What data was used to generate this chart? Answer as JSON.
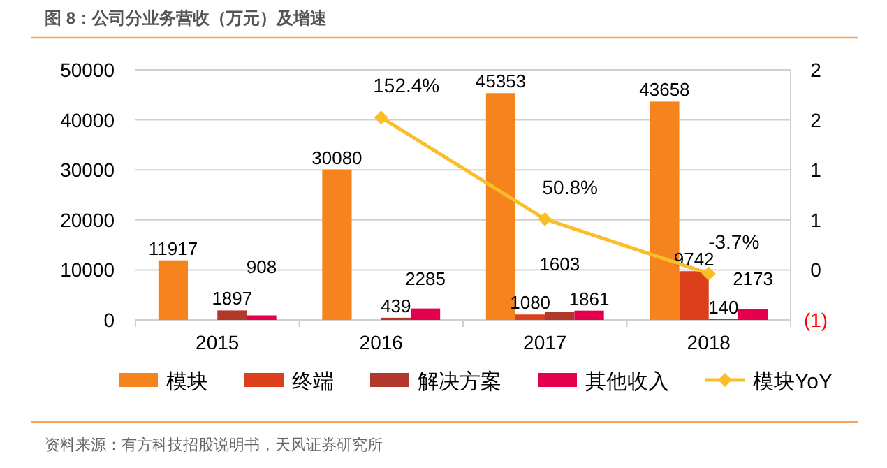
{
  "chart_data": {
    "type": "bar",
    "title": "图 8：公司分业务营收（万元）及增速",
    "categories": [
      "2015",
      "2016",
      "2017",
      "2018"
    ],
    "series": [
      {
        "name": "模块",
        "color": "#f5841f",
        "values": [
          11917,
          30080,
          45353,
          43658
        ],
        "value_labels": [
          "11917",
          "30080",
          "45353",
          "43658"
        ]
      },
      {
        "name": "终端",
        "color": "#dc3f1c",
        "values": [
          null,
          null,
          1080,
          9742
        ],
        "value_labels": [
          null,
          null,
          "1080",
          "9742"
        ]
      },
      {
        "name": "解决方案",
        "color": "#b0392c",
        "values": [
          1897,
          439,
          1603,
          140
        ],
        "value_labels": [
          "1897",
          "439",
          "1603",
          "140"
        ]
      },
      {
        "name": "其他收入",
        "color": "#e5004f",
        "values": [
          908,
          2285,
          1861,
          2173
        ],
        "value_labels": [
          "908",
          "2285",
          "1861",
          "2173"
        ]
      },
      {
        "name": "模块YoY",
        "type": "line",
        "axis": "y2",
        "color": "#f9be28",
        "marker": "diamond",
        "values": [
          null,
          1.524,
          0.508,
          -0.037
        ],
        "value_labels": [
          null,
          "152.4%",
          "50.8%",
          "-3.7%"
        ]
      }
    ],
    "ylim": [
      0,
      50000
    ],
    "yticks": [
      0,
      10000,
      20000,
      30000,
      40000,
      50000
    ],
    "y2lim": [
      -0.5,
      2
    ],
    "y2ticks": [
      {
        "value": -0.5,
        "label": "(1)"
      },
      0,
      {
        "value": 0.5,
        "label": "1"
      },
      1,
      {
        "value": 1.5,
        "label": "2"
      },
      2
    ],
    "grid": "y",
    "legend": "bottom",
    "annotations": [
      "资料来源：有方科技招股说明书，天风证券研究所"
    ]
  }
}
